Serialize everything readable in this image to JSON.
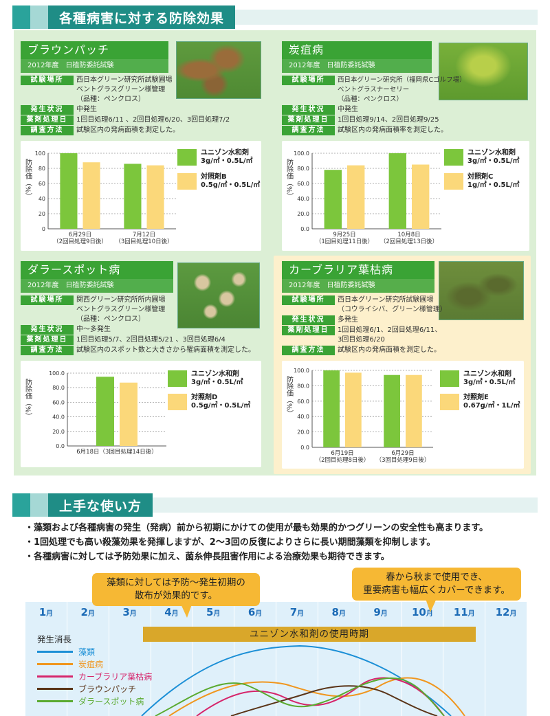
{
  "section1": {
    "title": "各種病害に対する防除効果"
  },
  "section2": {
    "title": "上手な使い方"
  },
  "labels": {
    "place": "試験場所",
    "status": "発生状況",
    "treatment": "薬剤処理日",
    "method": "調査方法",
    "yaxis": "防除価（%）"
  },
  "colors": {
    "green": "#7cc63c",
    "yellow": "#fbd87a",
    "header": "#1f8d86",
    "card_bg": "#dcefd5",
    "card_bg_yellow": "#fdf0cc"
  },
  "cards": [
    {
      "title": "ブラウンパッチ",
      "year": "2012年度　日植防委託試験",
      "place": "西日本グリーン研究所試験圃場\nベントグラスグリーン様管理\n（品種：ペンクロス）",
      "status": "中発生",
      "treatment": "1回目処理6/11 、2回目処理6/20、3回目処理7/2",
      "method": "試験区内の発病面積を測定した。",
      "legend": [
        {
          "name": "ユニゾン水和剤",
          "dose": "3g/㎡・0.5L/㎡"
        },
        {
          "name": "対照剤B",
          "dose": "0.5g/㎡・0.5L/㎡"
        }
      ],
      "ticks": [
        "100",
        "80",
        "60",
        "40",
        "20",
        "0"
      ]
    },
    {
      "title": "炭疽病",
      "year": "2012年度　日植防委託試験",
      "place": "西日本グリーン研究所（福岡県Cゴルフ場）\nベントグラスナーセリー\n（品種：ペンクロス）",
      "status": "中発生",
      "treatment": "1回目処理9/14、2回目処理9/25",
      "method": "試験区内の発病面積率を測定した。",
      "legend": [
        {
          "name": "ユニゾン水和剤",
          "dose": "3g/㎡・0.5L/㎡"
        },
        {
          "name": "対照剤C",
          "dose": "1g/㎡・0.5L/㎡"
        }
      ],
      "ticks": [
        "100.0",
        "80.0",
        "60.0",
        "40.0",
        "20.0",
        "0.0"
      ]
    },
    {
      "title": "ダラースポット病",
      "year": "2012年度　日植防委託試験",
      "place": "関西グリーン研究所所内圃場\nベントグラスグリーン様管理\n（品種：ペンクロス）",
      "status": "中〜多発生",
      "treatment": "1回目処理5/7、2回目処理5/21 、3回目処理6/4",
      "method": "試験区内のスポット数と大きさから罹病面積を測定した。",
      "legend": [
        {
          "name": "ユニゾン水和剤",
          "dose": "3g/㎡・0.5L/㎡"
        },
        {
          "name": "対照剤D",
          "dose": "0.5g/㎡・0.5L/㎡"
        }
      ],
      "ticks": [
        "100.0",
        "80.0",
        "60.0",
        "40.0",
        "20.0",
        "0.0"
      ]
    },
    {
      "title": "カーブラリア葉枯病",
      "year": "2012年度　日植防委託試験",
      "place": "西日本グリーン研究所試験圃場\n（コウライシバ、グリーン様管理）",
      "status": "多発生",
      "treatment": "1回目処理6/1、2回目処理6/11、\n3回目処理6/20",
      "method": "試験区内の発病面積を測定した。",
      "legend": [
        {
          "name": "ユニゾン水和剤",
          "dose": "3g/㎡・0.5L/㎡"
        },
        {
          "name": "対照剤E",
          "dose": "0.67g/㎡・1L/㎡"
        }
      ],
      "ticks": [
        "100.0",
        "80.0",
        "60.0",
        "40.0",
        "20.0",
        "0.0"
      ]
    }
  ],
  "chart_data": [
    {
      "type": "bar",
      "title": "ブラウンパッチ",
      "ylabel": "防除価（%）",
      "ylim": [
        0,
        100
      ],
      "categories": [
        "6月29日\n（2回目処理9日後）",
        "7月12日\n（3回目処理10日後）"
      ],
      "series": [
        {
          "name": "ユニゾン水和剤",
          "values": [
            100,
            86
          ]
        },
        {
          "name": "対照剤B",
          "values": [
            88,
            84
          ]
        }
      ]
    },
    {
      "type": "bar",
      "title": "炭疽病",
      "ylabel": "防除価（%）",
      "ylim": [
        0,
        100
      ],
      "categories": [
        "9月25日\n（1回目処理11日後）",
        "10月8日\n（2回目処理13日後）"
      ],
      "series": [
        {
          "name": "ユニゾン水和剤",
          "values": [
            78,
            100
          ]
        },
        {
          "name": "対照剤C",
          "values": [
            84,
            85
          ]
        }
      ]
    },
    {
      "type": "bar",
      "title": "ダラースポット病",
      "ylabel": "防除価（%）",
      "ylim": [
        0,
        100
      ],
      "categories": [
        "6月18日（3回目処理14日後）"
      ],
      "series": [
        {
          "name": "ユニゾン水和剤",
          "values": [
            95
          ]
        },
        {
          "name": "対照剤D",
          "values": [
            87
          ]
        }
      ]
    },
    {
      "type": "bar",
      "title": "カーブラリア葉枯病",
      "ylabel": "防除価（%）",
      "ylim": [
        0,
        100
      ],
      "categories": [
        "6月19日\n（2回目処理8日後）",
        "6月29日\n（3回目処理9日後）"
      ],
      "series": [
        {
          "name": "ユニゾン水和剤",
          "values": [
            100,
            94
          ]
        },
        {
          "name": "対照剤E",
          "values": [
            97,
            94
          ]
        }
      ]
    }
  ],
  "usage": {
    "bullets": [
      "・藻類および各種病害の発生（発病）前から初期にかけての使用が最も効果的かつグリーンの安全性も高まります。",
      "・1回処理でも高い殺藻効果を発揮しますが、2〜3回の反復によりさらに長い期間藻類を抑制します。",
      "・各種病害に対しては予防効果に加え、菌糸伸長阻害作用による治療効果も期待できます。"
    ],
    "callout1": "藻類に対しては予防〜発生初期の\n散布が効果的です。",
    "callout2": "春から秋まで使用でき、\n重要病害も幅広くカバーできます。",
    "months": [
      "1",
      "2",
      "3",
      "4",
      "5",
      "6",
      "7",
      "8",
      "9",
      "10",
      "11",
      "12"
    ],
    "month_unit": "月",
    "period": "ユニゾン水和剤の使用時期",
    "growth_label": "発生消長",
    "curves": [
      {
        "name": "藻類",
        "color": "#1b8fd6"
      },
      {
        "name": "炭疽病",
        "color": "#f0961e"
      },
      {
        "name": "カーブラリア葉枯病",
        "color": "#d6256b"
      },
      {
        "name": "ブラウンパッチ",
        "color": "#5a3418"
      },
      {
        "name": "ダラースポット病",
        "color": "#5aaa30"
      }
    ]
  }
}
